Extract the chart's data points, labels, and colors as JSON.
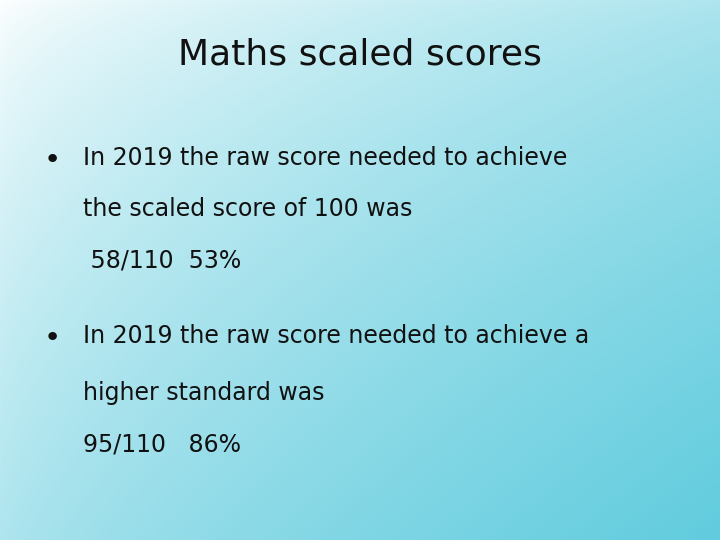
{
  "title": "Maths scaled scores",
  "title_fontsize": 26,
  "title_color": "#111111",
  "bullet1_line1": "In 2019 the raw score needed to achieve",
  "bullet1_line2": "the scaled score of 100 was",
  "bullet1_line3": " 58/110  53%",
  "bullet2_line1": "In 2019 the raw score needed to achieve a",
  "bullet2_line2": "higher standard was",
  "bullet2_line3": "95/110   86%",
  "text_fontsize": 17,
  "text_color": "#111111",
  "cyan_color": [
    0.38,
    0.8,
    0.87
  ],
  "figsize": [
    7.2,
    5.4
  ],
  "dpi": 100
}
